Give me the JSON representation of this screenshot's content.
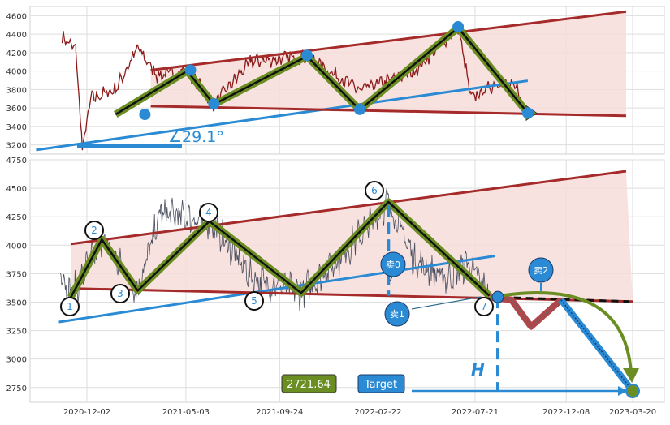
{
  "chart_data": [
    {
      "type": "line",
      "title": "",
      "xlabel": "",
      "ylabel": "",
      "ylim": [
        3100,
        4700
      ],
      "yticks": [
        3200,
        3400,
        3600,
        3800,
        4000,
        4200,
        4400,
        4600
      ],
      "grid": true,
      "angle_annotation": "∠29.1°",
      "pivot_points": [
        {
          "date": "2021-01-15",
          "value": 3530
        },
        {
          "date": "2021-05-05",
          "value": 4000
        },
        {
          "date": "2021-06-15",
          "value": 3640
        },
        {
          "date": "2021-11-05",
          "value": 4160
        },
        {
          "date": "2022-01-25",
          "value": 3580
        },
        {
          "date": "2022-06-25",
          "value": 4470
        },
        {
          "date": "2022-10-10",
          "value": 3545
        }
      ],
      "resistance_line": {
        "from": {
          "date": "2021-03-10",
          "value": 4010
        },
        "to": {
          "date": "2023-03-10",
          "value": 4645
        }
      },
      "support_line": {
        "from": {
          "date": "2021-03-10",
          "value": 3620
        },
        "to": {
          "date": "2023-03-10",
          "value": 3515
        }
      },
      "trend_line": {
        "from": {
          "date": "2020-09-15",
          "value": 3145
        },
        "to": {
          "date": "2022-10-10",
          "value": 3895
        }
      }
    },
    {
      "type": "line",
      "title": "",
      "xlabel": "",
      "ylabel": "",
      "ylim": [
        2620,
        4750
      ],
      "yticks": [
        2750,
        3000,
        3250,
        3500,
        3750,
        4000,
        4250,
        4500,
        4750
      ],
      "xticks": [
        "2020-12-02",
        "2021-05-03",
        "2021-09-24",
        "2022-02-22",
        "2022-07-21",
        "2022-12-08",
        "2023-03-20"
      ],
      "grid": true,
      "pivot_points": [
        {
          "label": "1",
          "date": "2020-11-07",
          "value": 3540
        },
        {
          "label": "2",
          "date": "2020-12-25",
          "value": 4050
        },
        {
          "label": "3",
          "date": "2021-02-18",
          "value": 3600
        },
        {
          "label": "4",
          "date": "2021-06-08",
          "value": 4210
        },
        {
          "label": "5",
          "date": "2021-10-27",
          "value": 3580
        },
        {
          "label": "6",
          "date": "2022-03-10",
          "value": 4380
        },
        {
          "label": "7",
          "date": "2022-08-12",
          "value": 3555
        }
      ],
      "projection_path": [
        {
          "date": "2022-08-12",
          "value": 3540
        },
        {
          "date": "2022-09-15",
          "value": 3520
        },
        {
          "date": "2022-10-15",
          "value": 3285
        },
        {
          "date": "2022-11-30",
          "value": 3520
        },
        {
          "date": "2023-03-20",
          "value": 2720
        }
      ],
      "resistance_line": {
        "from": {
          "date": "2020-11-07",
          "value": 4010
        },
        "to": {
          "date": "2023-03-10",
          "value": 4650
        }
      },
      "support_line": {
        "from": {
          "date": "2020-11-07",
          "value": 3620
        },
        "to": {
          "date": "2023-03-20",
          "value": 3505
        }
      },
      "trend_line": {
        "from": {
          "date": "2020-10-20",
          "value": 3325
        },
        "to": {
          "date": "2022-08-20",
          "value": 3905
        }
      },
      "sell_markers": [
        {
          "label": "卖0",
          "date": "2022-04-10",
          "value": 3810
        },
        {
          "label": "卖1",
          "date": "2022-04-12",
          "value": 3370
        },
        {
          "label": "卖2",
          "date": "2022-11-25",
          "value": 3750
        }
      ],
      "height_label": "H",
      "price_label": "2721.64",
      "target_label": "Target",
      "target_value": 2721.64
    }
  ],
  "colors": {
    "price_top": "#8b1a1a",
    "price_bottom": "#4a4f5f",
    "channel_fill": "#f7ddd9",
    "channel_line": "#a52a2a",
    "trend_line": "#2a8ad4",
    "zigzag_outer": "#6b8e23",
    "zigzag_inner": "#111111",
    "marker": "#2a8ad4",
    "price_label_bg": "#6b8e23",
    "target_bg": "#2a8ad4"
  }
}
